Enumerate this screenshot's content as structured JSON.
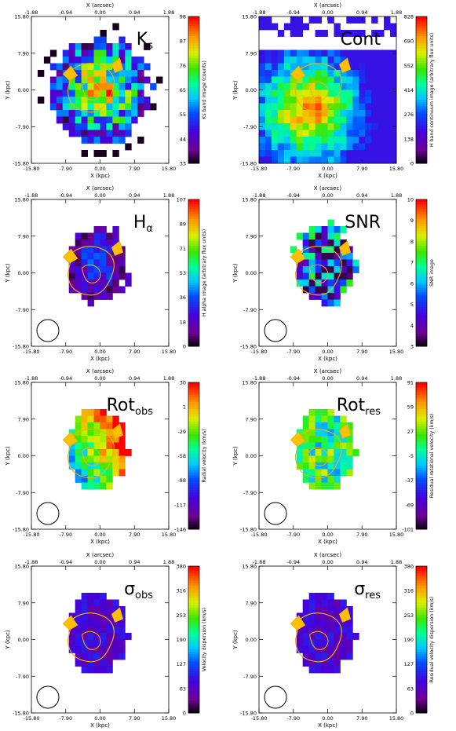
{
  "figure": {
    "colors": {
      "contour": "#f0b400",
      "contour_dark": "#8a5a00",
      "beam": "#000000"
    }
  },
  "chart_data": [
    {
      "type": "heatmap",
      "panel_title": "K",
      "panel_title_sub": "s",
      "xlabel": "X (kpc)",
      "ylabel": "Y (kpc)",
      "top_xlabel": "X (arcsec)",
      "x_ticks": [
        "-15.80",
        "-7.90",
        "0.00",
        "7.90",
        "15.80"
      ],
      "y_ticks": [
        "15.80",
        "7.90",
        "0.00",
        "-7.90",
        "-15.80"
      ],
      "top_ticks": [
        "-1.88",
        "-0.94",
        "0.00",
        "0.94",
        "1.88"
      ],
      "xlim": [
        -15.8,
        15.8
      ],
      "ylim": [
        -15.8,
        15.8
      ],
      "colorbar_label": "K$ band image (counts)",
      "colorbar_label_display": "Ks band image (counts)",
      "colorbar_ticks": [
        "98",
        "87",
        "76",
        "65",
        "55",
        "44",
        "33"
      ],
      "vmin": 33,
      "vmax": 98,
      "map_kind": "ks",
      "beam": false
    },
    {
      "type": "heatmap",
      "panel_title": "Cont",
      "panel_title_sub": "",
      "xlabel": "X (kpc)",
      "ylabel": "Y (kpc)",
      "top_xlabel": "X (arcsec)",
      "x_ticks": [
        "-15.80",
        "-7.90",
        "0.00",
        "7.90",
        "15.80"
      ],
      "y_ticks": [
        "15.80",
        "7.90",
        "0.00",
        "-7.90",
        "-15.80"
      ],
      "top_ticks": [
        "-1.88",
        "-0.94",
        "0.00",
        "0.94",
        "1.88"
      ],
      "xlim": [
        -15.8,
        15.8
      ],
      "ylim": [
        -15.8,
        15.8
      ],
      "colorbar_label_display": "H band continuum image (arbitrary flux units)",
      "colorbar_ticks": [
        "828",
        "690",
        "552",
        "414",
        "276",
        "138",
        "0"
      ],
      "vmin": 0,
      "vmax": 828,
      "map_kind": "cont",
      "beam": false
    },
    {
      "type": "heatmap",
      "panel_title": "H",
      "panel_title_sub": "α",
      "xlabel": "X (kpc)",
      "ylabel": "Y (kpc)",
      "top_xlabel": "X (arcsec)",
      "x_ticks": [
        "-15.80",
        "-7.90",
        "0.00",
        "7.90",
        "15.80"
      ],
      "y_ticks": [
        "15.80",
        "7.90",
        "0.00",
        "-7.90",
        "-15.80"
      ],
      "top_ticks": [
        "-1.88",
        "-0.94",
        "0.00",
        "0.94",
        "1.88"
      ],
      "xlim": [
        -15.8,
        15.8
      ],
      "ylim": [
        -15.8,
        15.8
      ],
      "colorbar_label_display": "H alpha image (arbitrary flux units)",
      "colorbar_ticks": [
        "107",
        "89",
        "71",
        "53",
        "36",
        "18",
        "0"
      ],
      "vmin": 0,
      "vmax": 107,
      "map_kind": "ha",
      "beam": true
    },
    {
      "type": "heatmap",
      "panel_title": "SNR",
      "panel_title_sub": "",
      "xlabel": "X (kpc)",
      "ylabel": "Y (kpc)",
      "top_xlabel": "X (arcsec)",
      "x_ticks": [
        "-15.80",
        "-7.90",
        "0.00",
        "7.90",
        "15.80"
      ],
      "y_ticks": [
        "15.80",
        "7.90",
        "0.00",
        "-7.90",
        "-15.80"
      ],
      "top_ticks": [
        "-1.88",
        "-0.94",
        "0.00",
        "0.94",
        "1.88"
      ],
      "xlim": [
        -15.8,
        15.8
      ],
      "ylim": [
        -15.8,
        15.8
      ],
      "colorbar_label_display": "SNR image",
      "colorbar_ticks": [
        "10",
        "9",
        "8",
        "7",
        "6",
        "5",
        "4",
        "3"
      ],
      "vmin": 3,
      "vmax": 10,
      "map_kind": "snr",
      "beam": true
    },
    {
      "type": "heatmap",
      "panel_title": "Rot",
      "panel_title_sub": "obs",
      "xlabel": "X (kpc)",
      "ylabel": "Y (kpc)",
      "top_xlabel": "X (arcsec)",
      "x_ticks": [
        "-15.80",
        "-7.90",
        "0.00",
        "7.90",
        "15.80"
      ],
      "y_ticks": [
        "15.80",
        "7.90",
        "0.00",
        "-7.90",
        "-15.80"
      ],
      "top_ticks": [
        "-1.88",
        "-0.94",
        "0.00",
        "0.94",
        "1.88"
      ],
      "xlim": [
        -15.8,
        15.8
      ],
      "ylim": [
        -15.8,
        15.8
      ],
      "colorbar_label_display": "Radial velocity (km/s)",
      "colorbar_ticks": [
        "30",
        "1",
        "-29",
        "-58",
        "-88",
        "-117",
        "-146"
      ],
      "vmin": -146,
      "vmax": 30,
      "map_kind": "rotobs",
      "beam": true
    },
    {
      "type": "heatmap",
      "panel_title": "Rot",
      "panel_title_sub": "res",
      "xlabel": "X (kpc)",
      "ylabel": "Y (kpc)",
      "top_xlabel": "X (arcsec)",
      "x_ticks": [
        "-15.80",
        "-7.90",
        "0.00",
        "7.90",
        "15.80"
      ],
      "y_ticks": [
        "15.80",
        "7.90",
        "0.00",
        "-7.90",
        "-15.80"
      ],
      "top_ticks": [
        "-1.88",
        "-0.94",
        "0.00",
        "0.94",
        "1.88"
      ],
      "xlim": [
        -15.8,
        15.8
      ],
      "ylim": [
        -15.8,
        15.8
      ],
      "colorbar_label_display": "Residual rotational velocity (km/s)",
      "colorbar_ticks": [
        "91",
        "59",
        "27",
        "-5",
        "-37",
        "-69",
        "-101"
      ],
      "vmin": -101,
      "vmax": 91,
      "map_kind": "rotres",
      "beam": true
    },
    {
      "type": "heatmap",
      "panel_title": "σ",
      "panel_title_sub": "obs",
      "xlabel": "X (kpc)",
      "ylabel": "Y (kpc)",
      "top_xlabel": "X (arcsec)",
      "x_ticks": [
        "-15.80",
        "-7.90",
        "0.00",
        "7.90",
        "15.80"
      ],
      "y_ticks": [
        "15.80",
        "7.90",
        "0.00",
        "-7.90",
        "-15.80"
      ],
      "top_ticks": [
        "-1.88",
        "-0.94",
        "0.00",
        "0.94",
        "1.88"
      ],
      "xlim": [
        -15.8,
        15.8
      ],
      "ylim": [
        -15.8,
        15.8
      ],
      "colorbar_label_display": "Velocity dispersion (km/s)",
      "colorbar_ticks": [
        "380",
        "316",
        "253",
        "190",
        "127",
        "63",
        "0"
      ],
      "vmin": 0,
      "vmax": 380,
      "map_kind": "sigobs",
      "beam": true
    },
    {
      "type": "heatmap",
      "panel_title": "σ",
      "panel_title_sub": "res",
      "xlabel": "X (kpc)",
      "ylabel": "Y (kpc)",
      "top_xlabel": "X (arcsec)",
      "x_ticks": [
        "-15.80",
        "-7.90",
        "0.00",
        "7.90",
        "15.80"
      ],
      "y_ticks": [
        "15.80",
        "7.90",
        "0.00",
        "-7.90",
        "-15.80"
      ],
      "top_ticks": [
        "-1.88",
        "-0.94",
        "0.00",
        "0.94",
        "1.88"
      ],
      "xlim": [
        -15.8,
        15.8
      ],
      "ylim": [
        -15.8,
        15.8
      ],
      "colorbar_label_display": "Residual velocity dispersion (km/s)",
      "colorbar_ticks": [
        "380",
        "316",
        "253",
        "190",
        "127",
        "63",
        "0"
      ],
      "vmin": 0,
      "vmax": 380,
      "map_kind": "sigres",
      "beam": true
    }
  ]
}
